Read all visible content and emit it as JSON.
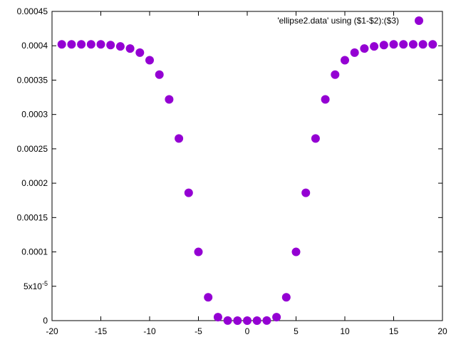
{
  "chart_data": {
    "type": "scatter",
    "title": "",
    "xlabel": "",
    "ylabel": "",
    "xlim": [
      -20,
      20
    ],
    "ylim": [
      0,
      0.00045
    ],
    "grid": false,
    "legend_position": "top-right",
    "marker_color": "#9400d3",
    "x_ticks": [
      {
        "value": -20,
        "label": "-20"
      },
      {
        "value": -15,
        "label": "-15"
      },
      {
        "value": -10,
        "label": "-10"
      },
      {
        "value": -5,
        "label": "-5"
      },
      {
        "value": 0,
        "label": "0"
      },
      {
        "value": 5,
        "label": "5"
      },
      {
        "value": 10,
        "label": "10"
      },
      {
        "value": 15,
        "label": "15"
      },
      {
        "value": 20,
        "label": "20"
      }
    ],
    "y_ticks": [
      {
        "value": 0,
        "label": "0"
      },
      {
        "value": 5e-05,
        "label": "5x10",
        "superscript": "-5"
      },
      {
        "value": 0.0001,
        "label": "0.0001"
      },
      {
        "value": 0.00015,
        "label": "0.00015"
      },
      {
        "value": 0.0002,
        "label": "0.0002"
      },
      {
        "value": 0.00025,
        "label": "0.00025"
      },
      {
        "value": 0.0003,
        "label": "0.0003"
      },
      {
        "value": 0.00035,
        "label": "0.00035"
      },
      {
        "value": 0.0004,
        "label": "0.0004"
      },
      {
        "value": 0.00045,
        "label": "0.00045"
      }
    ],
    "series": [
      {
        "name": "'ellipse2.data' using ($1-$2):($3)",
        "points": [
          {
            "x": -19,
            "y": 0.000402
          },
          {
            "x": -18,
            "y": 0.000402
          },
          {
            "x": -17,
            "y": 0.000402
          },
          {
            "x": -16,
            "y": 0.000402
          },
          {
            "x": -15,
            "y": 0.000402
          },
          {
            "x": -14,
            "y": 0.000401
          },
          {
            "x": -13,
            "y": 0.000399
          },
          {
            "x": -12,
            "y": 0.000396
          },
          {
            "x": -11,
            "y": 0.00039
          },
          {
            "x": -10,
            "y": 0.000379
          },
          {
            "x": -9,
            "y": 0.000358
          },
          {
            "x": -8,
            "y": 0.000322
          },
          {
            "x": -7,
            "y": 0.000265
          },
          {
            "x": -6,
            "y": 0.000186
          },
          {
            "x": -5,
            "y": 0.0001
          },
          {
            "x": -4,
            "y": 3.4e-05
          },
          {
            "x": -3,
            "y": 5e-06
          },
          {
            "x": -2,
            "y": 1e-07
          },
          {
            "x": -1,
            "y": 0
          },
          {
            "x": 0,
            "y": 0
          },
          {
            "x": 1,
            "y": 0
          },
          {
            "x": 2,
            "y": 1e-07
          },
          {
            "x": 3,
            "y": 5e-06
          },
          {
            "x": 4,
            "y": 3.4e-05
          },
          {
            "x": 5,
            "y": 0.0001
          },
          {
            "x": 6,
            "y": 0.000186
          },
          {
            "x": 7,
            "y": 0.000265
          },
          {
            "x": 8,
            "y": 0.000322
          },
          {
            "x": 9,
            "y": 0.000358
          },
          {
            "x": 10,
            "y": 0.000379
          },
          {
            "x": 11,
            "y": 0.00039
          },
          {
            "x": 12,
            "y": 0.000396
          },
          {
            "x": 13,
            "y": 0.000399
          },
          {
            "x": 14,
            "y": 0.000401
          },
          {
            "x": 15,
            "y": 0.000402
          },
          {
            "x": 16,
            "y": 0.000402
          },
          {
            "x": 17,
            "y": 0.000402
          },
          {
            "x": 18,
            "y": 0.000402
          },
          {
            "x": 19,
            "y": 0.000402
          }
        ]
      }
    ]
  }
}
